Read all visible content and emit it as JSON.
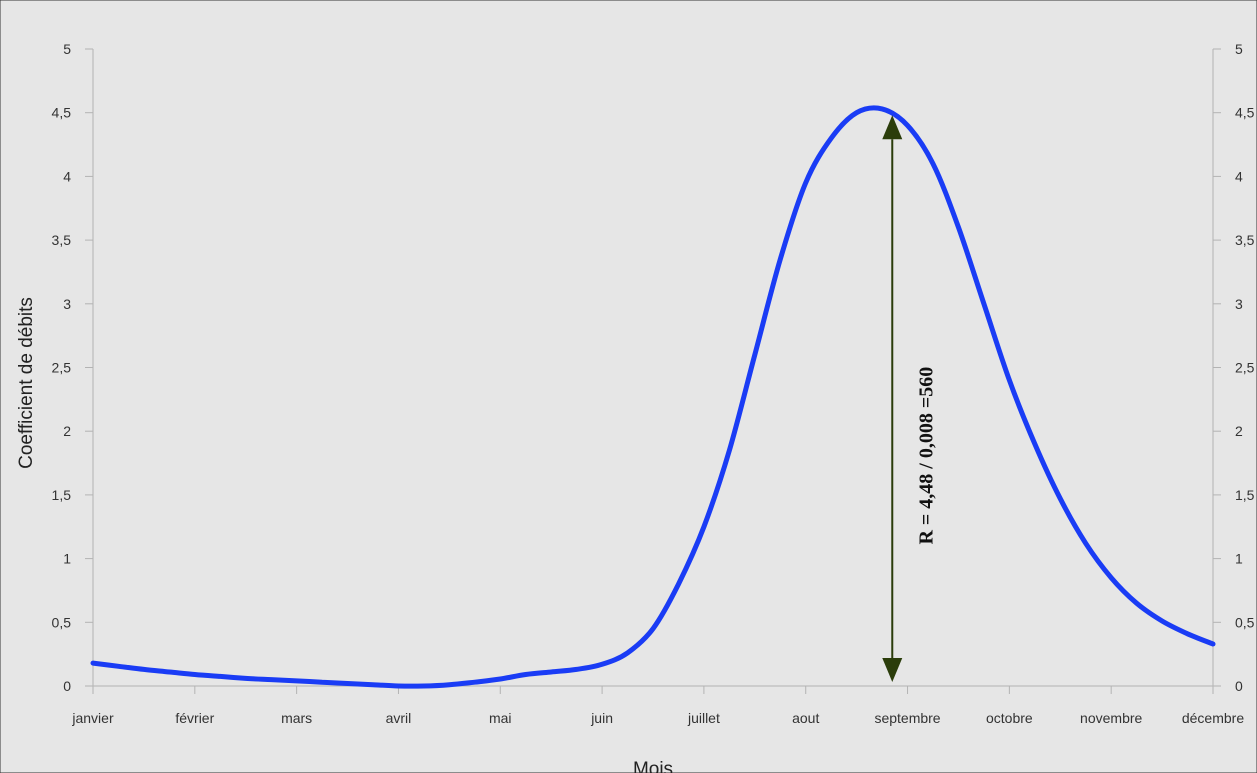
{
  "chart_data": {
    "type": "line",
    "title": "",
    "xlabel": "Mois",
    "ylabel": "Coefficient de débits",
    "categories": [
      "janvier",
      "février",
      "mars",
      "avril",
      "mai",
      "juin",
      "juillet",
      "aout",
      "septembre",
      "octobre",
      "novembre",
      "décembre"
    ],
    "yticks": [
      "0",
      "0,5",
      "1",
      "1,5",
      "2",
      "2,5",
      "3",
      "3,5",
      "4",
      "4,5",
      "5"
    ],
    "ylim": [
      0,
      5
    ],
    "series": [
      {
        "name": "",
        "x": [
          0.0,
          0.25,
          0.5,
          0.75,
          1.0,
          1.25,
          1.5,
          1.75,
          2.0,
          2.25,
          2.5,
          2.75,
          3.0,
          3.25,
          3.5,
          3.75,
          4.0,
          4.25,
          4.5,
          4.75,
          5.0,
          5.25,
          5.5,
          5.75,
          6.0,
          6.25,
          6.5,
          6.75,
          7.0,
          7.25,
          7.5,
          7.75,
          8.0,
          8.25,
          8.5,
          8.75,
          9.0,
          9.25,
          9.5,
          9.75,
          10.0,
          10.25,
          10.5,
          10.75,
          11.0
        ],
        "values": [
          0.18,
          0.155,
          0.13,
          0.11,
          0.09,
          0.075,
          0.06,
          0.05,
          0.04,
          0.03,
          0.02,
          0.01,
          0.0,
          0.0,
          0.01,
          0.03,
          0.055,
          0.09,
          0.11,
          0.13,
          0.17,
          0.26,
          0.45,
          0.8,
          1.25,
          1.85,
          2.6,
          3.35,
          3.95,
          4.3,
          4.5,
          4.53,
          4.4,
          4.1,
          3.6,
          3.0,
          2.4,
          1.9,
          1.47,
          1.12,
          0.85,
          0.65,
          0.51,
          0.41,
          0.33
        ],
        "color": "#1a3cf5"
      }
    ],
    "annotation": {
      "text": "R = 4,48 / 0,008 =560",
      "x": 7.85,
      "from": 0.0,
      "to": 4.48,
      "color": "#2b3d0b"
    },
    "grid": false,
    "background": "#e6e6e6",
    "legend": "none"
  }
}
